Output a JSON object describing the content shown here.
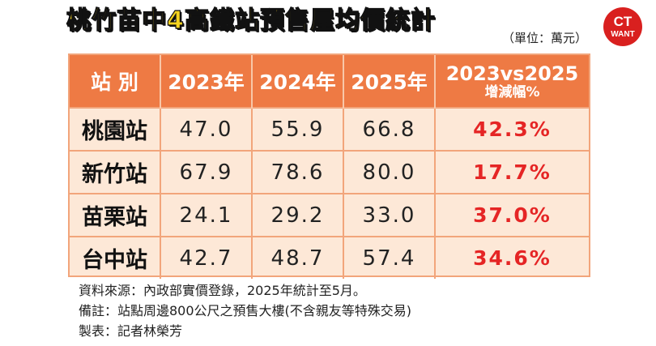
{
  "title": "桃竹苗中4高鐵站預售屋均價統計",
  "unit": "（單位：萬元）",
  "logo": {
    "line1": "CT",
    "line2": "WANT",
    "color": "#d9201f"
  },
  "table": {
    "headers": [
      "站 別",
      "2023年",
      "2024年",
      "2025年"
    ],
    "last_header": {
      "line1": "2023vs2025",
      "line2": "增減幅%"
    },
    "rows": [
      {
        "station": "桃園站",
        "y2023": "47.0",
        "y2024": "55.9",
        "y2025": "66.8",
        "change": "42.3%"
      },
      {
        "station": "新竹站",
        "y2023": "67.9",
        "y2024": "78.6",
        "y2025": "80.0",
        "change": "17.7%"
      },
      {
        "station": "苗栗站",
        "y2023": "24.1",
        "y2024": "29.2",
        "y2025": "33.0",
        "change": "37.0%"
      },
      {
        "station": "台中站",
        "y2023": "42.7",
        "y2024": "48.7",
        "y2025": "57.4",
        "change": "34.6%"
      }
    ]
  },
  "notes": [
    "資料來源：內政部實價登錄，2025年統計至5月。",
    "備註：站點周邊800公尺之預售大樓(不含親友等特殊交易)",
    "製表：記者林榮芳"
  ],
  "colors": {
    "header_bg": "#ee7a44",
    "row_bg": "#fde8d7",
    "border": "#f2a57b",
    "pct": "#e52525",
    "title": "#f4d21f"
  }
}
